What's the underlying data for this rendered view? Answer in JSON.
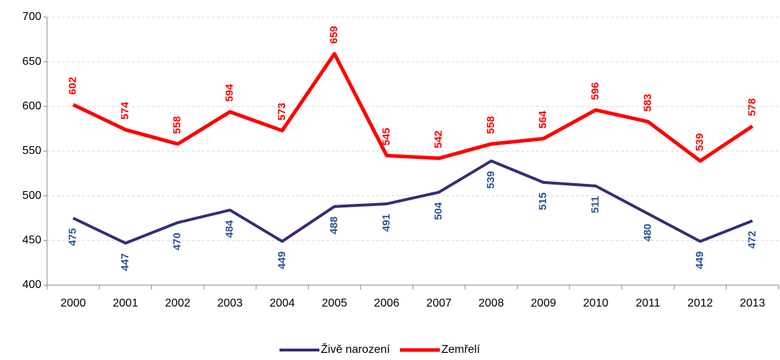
{
  "chart_data": {
    "type": "line",
    "categories": [
      "2000",
      "2001",
      "2002",
      "2003",
      "2004",
      "2005",
      "2006",
      "2007",
      "2008",
      "2009",
      "2010",
      "2011",
      "2012",
      "2013"
    ],
    "series": [
      {
        "name": "Živě narození",
        "color": "#322f73",
        "label_color": "#2a5494",
        "label_position": "below",
        "values": [
          475,
          447,
          470,
          484,
          449,
          488,
          491,
          504,
          539,
          515,
          511,
          480,
          449,
          472
        ]
      },
      {
        "name": "Zemřelí",
        "color": "#ff0000",
        "label_color": "#ff0000",
        "label_position": "above",
        "values": [
          602,
          574,
          558,
          594,
          573,
          659,
          545,
          542,
          558,
          564,
          596,
          583,
          539,
          578
        ]
      }
    ],
    "ylim": [
      400,
      700
    ],
    "yticks": [
      400,
      450,
      500,
      550,
      600,
      650,
      700
    ],
    "grid": true,
    "legend": "bottom"
  }
}
